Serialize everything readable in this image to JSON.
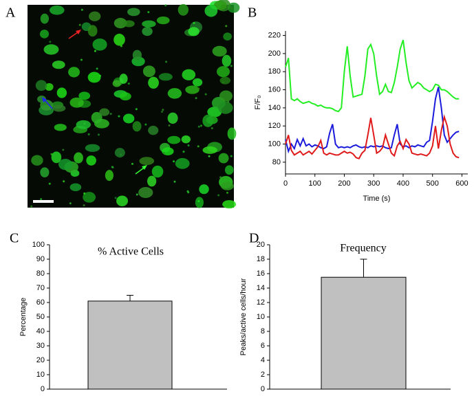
{
  "image_panel": {
    "label": "A"
  },
  "chart_data": [
    {
      "panel": "B",
      "type": "line",
      "x_label": "Time (s)",
      "y_label": "F/F₀",
      "x": [
        0,
        10,
        20,
        30,
        40,
        50,
        60,
        70,
        80,
        90,
        100,
        110,
        120,
        130,
        140,
        150,
        160,
        170,
        180,
        190,
        200,
        210,
        220,
        230,
        240,
        250,
        260,
        270,
        280,
        290,
        300,
        310,
        320,
        330,
        340,
        350,
        360,
        370,
        380,
        390,
        400,
        410,
        420,
        430,
        440,
        450,
        460,
        470,
        480,
        490,
        500,
        510,
        520,
        530,
        540,
        550,
        560,
        570,
        580,
        590
      ],
      "series": [
        {
          "color": "#22ee22",
          "values": [
            185,
            195,
            150,
            148,
            150,
            147,
            145,
            146,
            147,
            145,
            144,
            142,
            143,
            141,
            140,
            140,
            139,
            137,
            136,
            140,
            180,
            208,
            175,
            152,
            153,
            154,
            155,
            175,
            205,
            210,
            200,
            175,
            155,
            158,
            166,
            158,
            157,
            168,
            185,
            205,
            215,
            190,
            170,
            162,
            165,
            168,
            166,
            162,
            160,
            158,
            160,
            166,
            165,
            160,
            160,
            158,
            155,
            152,
            150,
            150
          ]
        },
        {
          "color": "#1a1adc",
          "values": [
            105,
            92,
            100,
            95,
            105,
            98,
            106,
            98,
            100,
            97,
            99,
            98,
            96,
            95,
            97,
            112,
            122,
            100,
            96,
            97,
            96,
            97,
            96,
            98,
            99,
            97,
            96,
            97,
            96,
            98,
            97,
            98,
            97,
            98,
            96,
            95,
            96,
            110,
            122,
            100,
            97,
            98,
            96,
            98,
            97,
            99,
            98,
            97,
            102,
            104,
            125,
            150,
            163,
            140,
            110,
            102,
            106,
            110,
            113,
            114
          ]
        },
        {
          "color": "#e01a1a",
          "values": [
            100,
            110,
            93,
            88,
            90,
            92,
            88,
            90,
            92,
            89,
            93,
            97,
            104,
            90,
            88,
            90,
            89,
            88,
            88,
            90,
            92,
            90,
            91,
            89,
            85,
            84,
            90,
            93,
            110,
            129,
            110,
            90,
            92,
            96,
            110,
            100,
            90,
            87,
            98,
            103,
            95,
            105,
            100,
            90,
            89,
            88,
            89,
            88,
            87,
            90,
            98,
            120,
            95,
            115,
            130,
            120,
            100,
            90,
            86,
            85
          ]
        }
      ],
      "xlim": [
        0,
        620
      ],
      "xticks": [
        0,
        100,
        200,
        300,
        400,
        500,
        600
      ],
      "ylim": [
        67,
        225
      ],
      "yticks": [
        80,
        100,
        120,
        140,
        160,
        180,
        200,
        220
      ]
    },
    {
      "panel": "C",
      "type": "bar",
      "title": "% Active Cells",
      "y_label": "Percentage",
      "values": [
        61
      ],
      "errors": [
        4
      ],
      "color": "#c0c0c0",
      "ylim": [
        0,
        100
      ],
      "yticks": [
        0,
        10,
        20,
        30,
        40,
        50,
        60,
        70,
        80,
        90,
        100
      ]
    },
    {
      "panel": "D",
      "type": "bar",
      "title": "Frequency",
      "y_label": "Peaks/active cells/hour",
      "values": [
        15.5
      ],
      "errors": [
        2.5
      ],
      "color": "#c0c0c0",
      "ylim": [
        0,
        20
      ],
      "yticks": [
        0,
        2,
        4,
        6,
        8,
        10,
        12,
        14,
        16,
        18,
        20
      ]
    }
  ]
}
